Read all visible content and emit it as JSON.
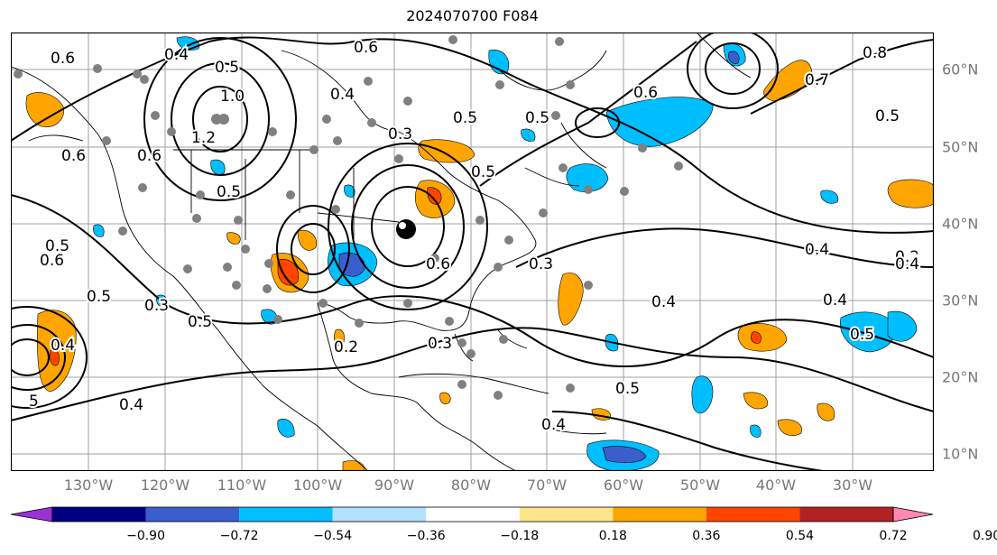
{
  "title": "2024070700 F084",
  "lon_labels": [
    "130°W",
    "120°W",
    "110°W",
    "100°W",
    "90°W",
    "80°W",
    "70°W",
    "60°W",
    "50°W",
    "40°W",
    "30°W"
  ],
  "lat_labels": [
    "60°N",
    "50°N",
    "40°N",
    "30°N",
    "20°N",
    "10°N"
  ],
  "colorbar": {
    "ticks": [
      "−0.90",
      "−0.72",
      "−0.54",
      "−0.36",
      "−0.18",
      "0.18",
      "0.36",
      "0.54",
      "0.72",
      "0.90"
    ],
    "colors": [
      "#9b30d9",
      "#000080",
      "#3a5fcd",
      "#00bfff",
      "#b0e2ff",
      "#ffffff",
      "#ffe58a",
      "#ffa500",
      "#ff4500",
      "#b22222",
      "#ff88b0"
    ]
  },
  "contour_labels": [
    "0.6",
    "0.4",
    "0.5",
    "0.6",
    "0.4",
    "0.5",
    "0.3",
    "0.5",
    "0.5",
    "0.6",
    "0.8",
    "0.7",
    "0.5",
    "1.0",
    "1.2",
    "0.6",
    "0.6",
    "0.5",
    "0.6",
    "0.5",
    "0.3",
    "0.5",
    "0.4",
    "0.3",
    "0.4",
    "0.2",
    "0.2",
    "0.3",
    "0.5",
    "0.4",
    "0.4",
    "0.5",
    "0.4",
    "0.6",
    "0.4",
    "0.4",
    "5",
    "0.5"
  ],
  "colors": {
    "frame": "#000000",
    "grid": "#a0a0a0",
    "stations": "#808080",
    "center_marker": "#000000"
  }
}
